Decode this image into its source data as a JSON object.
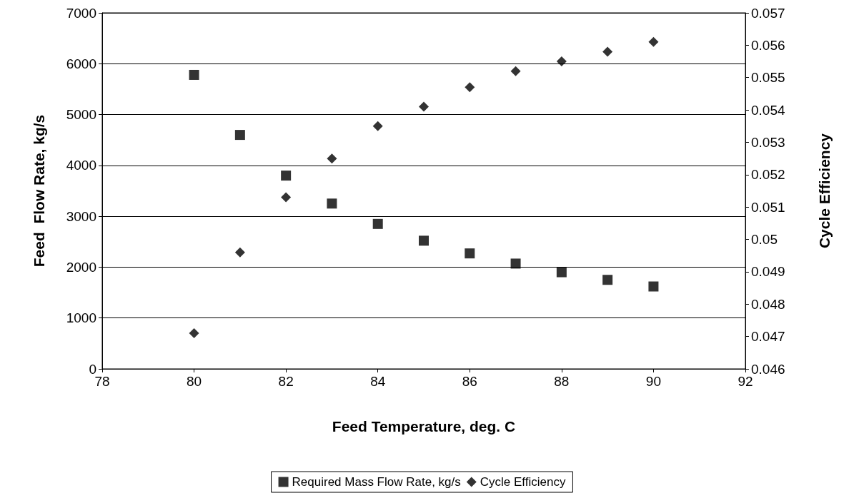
{
  "chart_data": {
    "type": "scatter",
    "xlabel": "Feed Temperature, deg. C",
    "ylabel": "Feed  Flow Rate, kg/s",
    "y2label": "Cycle Efficiency",
    "x": [
      80,
      81,
      82,
      83,
      84,
      85,
      86,
      87,
      88,
      89,
      90
    ],
    "series": [
      {
        "name": "Required Mass Flow Rate, kg/s",
        "color": "#000000",
        "marker": "square",
        "values": [
          5780,
          4600,
          3800,
          3250,
          2850,
          2520,
          2270,
          2070,
          1900,
          1750,
          1620
        ]
      },
      {
        "name": "Cycle Efficiency",
        "color": "#000000",
        "marker": "diamond",
        "axis": "y2",
        "values": [
          0.0471,
          0.0496,
          0.0513,
          0.0525,
          0.0535,
          0.0541,
          0.0547,
          0.0552,
          0.0555,
          0.0558,
          0.0561
        ]
      }
    ],
    "xlim": [
      78,
      92
    ],
    "xticks": [
      78,
      80,
      82,
      84,
      86,
      88,
      90,
      92
    ],
    "ylim": [
      0,
      7000
    ],
    "yticks": [
      0,
      1000,
      2000,
      3000,
      4000,
      5000,
      6000,
      7000
    ],
    "y2lim": [
      0.046,
      0.057
    ],
    "y2ticks": [
      0.046,
      0.047,
      0.048,
      0.049,
      0.05,
      0.051,
      0.052,
      0.053,
      0.054,
      0.055,
      0.056,
      0.057
    ],
    "grid": "y",
    "legend": "bottom"
  }
}
